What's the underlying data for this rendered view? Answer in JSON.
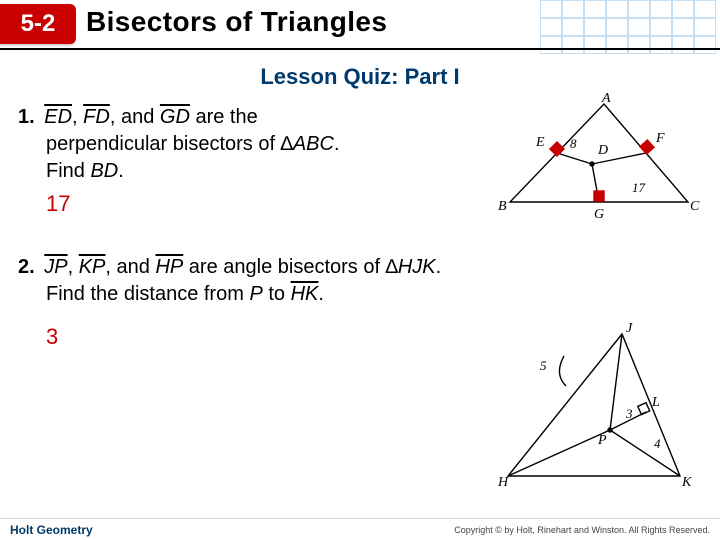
{
  "header": {
    "lesson_number": "5-2",
    "title": "Bisectors of Triangles",
    "grid_color": "#c7dff3",
    "pill_bg": "#c80000",
    "rule_color": "#000000"
  },
  "quiz_title": "Lesson Quiz: Part I",
  "q1": {
    "number": "1.",
    "seg1": "ED",
    "seg2": "FD",
    "seg3": "GD",
    "text_mid1": ", ",
    "text_mid2": ", and ",
    "text_after_segs": " are the",
    "line2a": "perpendicular bisectors of ∆",
    "triangle": "ABC",
    "line2b": ".",
    "line3a": "Find ",
    "find_seg": "BD",
    "line3b": ".",
    "answer": "17"
  },
  "q2": {
    "number": "2.",
    "seg1": "JP",
    "seg2": "KP",
    "seg3": "HP",
    "text_mid1": ", ",
    "text_mid2": ", and ",
    "text_after_segs": " are angle bisectors of ∆",
    "triangle": "HJK",
    "tail": ".",
    "line2a": "Find the distance from ",
    "p": "P",
    "line2b": " to ",
    "seg_hk": "HK",
    "line2c": ".",
    "answer": "3"
  },
  "figure1": {
    "labels": {
      "A": "A",
      "B": "B",
      "C": "C",
      "D": "D",
      "E": "E",
      "F": "F",
      "G": "G"
    },
    "numbers": {
      "eight": "8",
      "seventeen": "17"
    },
    "stroke": "#000000",
    "right_angle_fill": "#c80000"
  },
  "figure2": {
    "labels": {
      "H": "H",
      "J": "J",
      "K": "K",
      "L": "L",
      "P": "P"
    },
    "numbers": {
      "five": "5",
      "three": "3",
      "four": "4"
    },
    "stroke": "#000000"
  },
  "footer": {
    "left": "Holt Geometry",
    "right": "Copyright © by Holt, Rinehart and Winston. All Rights Reserved."
  }
}
